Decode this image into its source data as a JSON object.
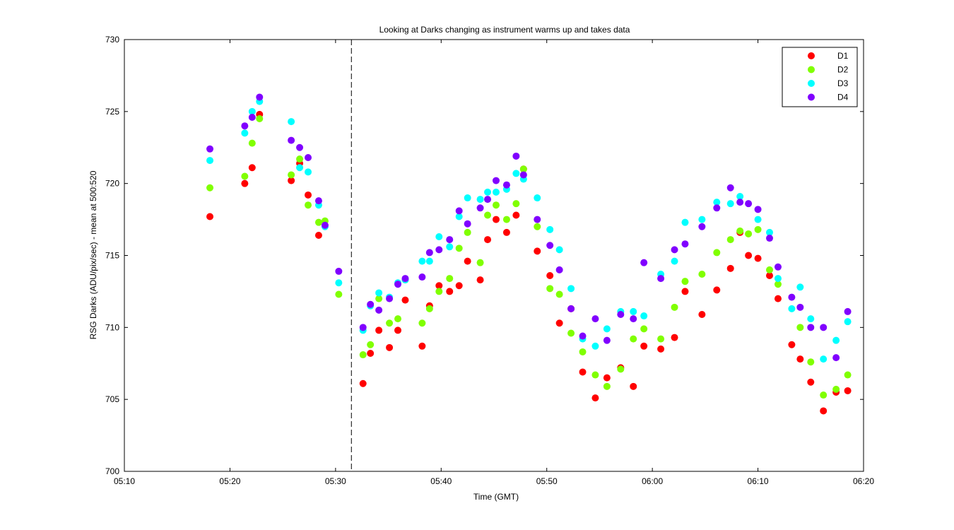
{
  "colors": {
    "background": "#ffffff",
    "D1": "#ff0000",
    "D2": "#80ff00",
    "D3": "#00ffff",
    "D4": "#8000ff"
  },
  "chart_data": {
    "type": "scatter",
    "title": "Looking at Darks changing as instrument warms up and takes data",
    "xlabel": "Time (GMT)",
    "ylabel": "RSG Darks (ADU/pix/sec) - mean at 500:520",
    "xlim": [
      "05:10",
      "06:20"
    ],
    "ylim": [
      700,
      730
    ],
    "x_tick_labels": [
      "05:10",
      "05:20",
      "05:30",
      "05:40",
      "05:50",
      "06:00",
      "06:10",
      "06:20"
    ],
    "y_tick_labels": [
      "700",
      "705",
      "710",
      "715",
      "720",
      "725",
      "730"
    ],
    "grid": false,
    "legend_position": "top-right",
    "vertical_reference_line": {
      "x": "05:31.5",
      "style": "dashed"
    },
    "series": [
      {
        "name": "D1",
        "points": [
          [
            "05:18.1",
            717.7
          ],
          [
            "05:21.4",
            720.0
          ],
          [
            "05:22.1",
            721.1
          ],
          [
            "05:22.8",
            724.8
          ],
          [
            "05:25.8",
            720.2
          ],
          [
            "05:26.6",
            721.4
          ],
          [
            "05:27.4",
            719.2
          ],
          [
            "05:28.4",
            716.4
          ],
          [
            "05:32.6",
            706.1
          ],
          [
            "05:33.3",
            708.2
          ],
          [
            "05:34.1",
            709.8
          ],
          [
            "05:35.1",
            708.6
          ],
          [
            "05:35.9",
            709.8
          ],
          [
            "05:36.6",
            711.9
          ],
          [
            "05:38.2",
            708.7
          ],
          [
            "05:38.9",
            711.5
          ],
          [
            "05:39.8",
            712.9
          ],
          [
            "05:40.8",
            712.5
          ],
          [
            "05:41.7",
            712.9
          ],
          [
            "05:42.5",
            714.6
          ],
          [
            "05:43.7",
            713.3
          ],
          [
            "05:44.4",
            716.1
          ],
          [
            "05:45.2",
            717.5
          ],
          [
            "05:46.2",
            716.6
          ],
          [
            "05:47.1",
            717.8
          ],
          [
            "05:47.8",
            721.0
          ],
          [
            "05:49.1",
            715.3
          ],
          [
            "05:50.3",
            713.6
          ],
          [
            "05:51.2",
            710.3
          ],
          [
            "05:52.3",
            711.3
          ],
          [
            "05:53.4",
            706.9
          ],
          [
            "05:54.6",
            705.1
          ],
          [
            "05:55.7",
            706.5
          ],
          [
            "05:57.0",
            707.2
          ],
          [
            "05:58.2",
            705.9
          ],
          [
            "05:59.2",
            708.7
          ],
          [
            "06:00.8",
            708.5
          ],
          [
            "06:02.1",
            709.3
          ],
          [
            "06:03.1",
            712.5
          ],
          [
            "06:04.7",
            710.9
          ],
          [
            "06:06.1",
            712.6
          ],
          [
            "06:07.4",
            714.1
          ],
          [
            "06:08.3",
            716.6
          ],
          [
            "06:09.1",
            715.0
          ],
          [
            "06:10.0",
            714.8
          ],
          [
            "06:11.1",
            713.6
          ],
          [
            "06:11.9",
            712.0
          ],
          [
            "06:13.2",
            708.8
          ],
          [
            "06:14.0",
            707.8
          ],
          [
            "06:15.0",
            706.2
          ],
          [
            "06:16.2",
            704.2
          ],
          [
            "06:17.4",
            705.5
          ],
          [
            "06:18.5",
            705.6
          ]
        ]
      },
      {
        "name": "D2",
        "points": [
          [
            "05:18.1",
            719.7
          ],
          [
            "05:21.4",
            720.5
          ],
          [
            "05:22.1",
            722.8
          ],
          [
            "05:22.8",
            724.5
          ],
          [
            "05:25.8",
            720.6
          ],
          [
            "05:26.6",
            721.7
          ],
          [
            "05:27.4",
            718.5
          ],
          [
            "05:28.4",
            717.3
          ],
          [
            "05:29.0",
            717.4
          ],
          [
            "05:30.3",
            712.3
          ],
          [
            "05:32.6",
            708.1
          ],
          [
            "05:33.3",
            708.8
          ],
          [
            "05:34.1",
            712.0
          ],
          [
            "05:35.1",
            710.3
          ],
          [
            "05:35.9",
            710.6
          ],
          [
            "05:36.6",
            713.3
          ],
          [
            "05:38.2",
            710.3
          ],
          [
            "05:38.9",
            711.3
          ],
          [
            "05:39.8",
            712.5
          ],
          [
            "05:40.8",
            713.4
          ],
          [
            "05:41.7",
            715.5
          ],
          [
            "05:42.5",
            716.6
          ],
          [
            "05:43.7",
            714.5
          ],
          [
            "05:44.4",
            717.8
          ],
          [
            "05:45.2",
            718.5
          ],
          [
            "05:46.2",
            717.5
          ],
          [
            "05:47.1",
            718.6
          ],
          [
            "05:47.8",
            721.0
          ],
          [
            "05:49.1",
            717.0
          ],
          [
            "05:50.3",
            712.7
          ],
          [
            "05:51.2",
            712.3
          ],
          [
            "05:52.3",
            709.6
          ],
          [
            "05:53.4",
            708.3
          ],
          [
            "05:54.6",
            706.7
          ],
          [
            "05:55.7",
            705.9
          ],
          [
            "05:57.0",
            707.1
          ],
          [
            "05:58.2",
            709.2
          ],
          [
            "05:59.2",
            709.9
          ],
          [
            "06:00.8",
            709.2
          ],
          [
            "06:02.1",
            711.4
          ],
          [
            "06:03.1",
            713.2
          ],
          [
            "06:04.7",
            713.7
          ],
          [
            "06:06.1",
            715.2
          ],
          [
            "06:07.4",
            716.1
          ],
          [
            "06:08.3",
            716.7
          ],
          [
            "06:09.1",
            716.5
          ],
          [
            "06:10.0",
            716.8
          ],
          [
            "06:11.1",
            714.0
          ],
          [
            "06:11.9",
            713.0
          ],
          [
            "06:14.0",
            710.0
          ],
          [
            "06:15.0",
            707.6
          ],
          [
            "06:16.2",
            705.3
          ],
          [
            "06:17.4",
            705.7
          ],
          [
            "06:18.5",
            706.7
          ]
        ]
      },
      {
        "name": "D3",
        "points": [
          [
            "05:18.1",
            721.6
          ],
          [
            "05:21.4",
            723.5
          ],
          [
            "05:22.1",
            725.0
          ],
          [
            "05:22.8",
            725.7
          ],
          [
            "05:25.8",
            724.3
          ],
          [
            "05:26.6",
            721.1
          ],
          [
            "05:27.4",
            720.8
          ],
          [
            "05:28.4",
            718.5
          ],
          [
            "05:29.0",
            717.0
          ],
          [
            "05:30.3",
            713.1
          ],
          [
            "05:32.6",
            709.8
          ],
          [
            "05:33.3",
            711.5
          ],
          [
            "05:34.1",
            712.4
          ],
          [
            "05:35.1",
            712.1
          ],
          [
            "05:35.9",
            713.1
          ],
          [
            "05:36.6",
            713.3
          ],
          [
            "05:38.2",
            714.6
          ],
          [
            "05:38.9",
            714.6
          ],
          [
            "05:39.8",
            716.3
          ],
          [
            "05:40.8",
            715.6
          ],
          [
            "05:41.7",
            717.7
          ],
          [
            "05:42.5",
            719.0
          ],
          [
            "05:43.7",
            718.9
          ],
          [
            "05:44.4",
            719.4
          ],
          [
            "05:45.2",
            719.4
          ],
          [
            "05:46.2",
            719.6
          ],
          [
            "05:47.1",
            720.7
          ],
          [
            "05:47.8",
            720.3
          ],
          [
            "05:49.1",
            719.0
          ],
          [
            "05:50.3",
            716.8
          ],
          [
            "05:51.2",
            715.4
          ],
          [
            "05:52.3",
            712.7
          ],
          [
            "05:53.4",
            709.2
          ],
          [
            "05:54.6",
            708.7
          ],
          [
            "05:55.7",
            709.9
          ],
          [
            "05:57.0",
            711.1
          ],
          [
            "05:58.2",
            711.1
          ],
          [
            "05:59.2",
            710.8
          ],
          [
            "06:00.8",
            713.7
          ],
          [
            "06:02.1",
            714.6
          ],
          [
            "06:03.1",
            717.3
          ],
          [
            "06:04.7",
            717.5
          ],
          [
            "06:06.1",
            718.7
          ],
          [
            "06:07.4",
            718.6
          ],
          [
            "06:08.3",
            719.1
          ],
          [
            "06:10.0",
            717.5
          ],
          [
            "06:11.1",
            716.6
          ],
          [
            "06:11.9",
            713.4
          ],
          [
            "06:13.2",
            711.3
          ],
          [
            "06:14.0",
            712.8
          ],
          [
            "06:15.0",
            710.6
          ],
          [
            "06:16.2",
            707.8
          ],
          [
            "06:17.4",
            709.1
          ],
          [
            "06:18.5",
            710.4
          ]
        ]
      },
      {
        "name": "D4",
        "points": [
          [
            "05:18.1",
            722.4
          ],
          [
            "05:21.4",
            724.0
          ],
          [
            "05:22.1",
            724.6
          ],
          [
            "05:22.8",
            726.0
          ],
          [
            "05:25.8",
            723.0
          ],
          [
            "05:26.6",
            722.5
          ],
          [
            "05:27.4",
            721.8
          ],
          [
            "05:28.4",
            718.8
          ],
          [
            "05:29.0",
            717.1
          ],
          [
            "05:30.3",
            713.9
          ],
          [
            "05:32.6",
            710.0
          ],
          [
            "05:33.3",
            711.6
          ],
          [
            "05:34.1",
            711.2
          ],
          [
            "05:35.1",
            712.0
          ],
          [
            "05:35.9",
            713.0
          ],
          [
            "05:36.6",
            713.4
          ],
          [
            "05:38.2",
            713.5
          ],
          [
            "05:38.9",
            715.2
          ],
          [
            "05:39.8",
            715.4
          ],
          [
            "05:40.8",
            716.1
          ],
          [
            "05:41.7",
            718.1
          ],
          [
            "05:42.5",
            717.2
          ],
          [
            "05:43.7",
            718.3
          ],
          [
            "05:44.4",
            718.9
          ],
          [
            "05:45.2",
            720.2
          ],
          [
            "05:46.2",
            719.9
          ],
          [
            "05:47.1",
            721.9
          ],
          [
            "05:47.8",
            720.6
          ],
          [
            "05:49.1",
            717.5
          ],
          [
            "05:50.3",
            715.7
          ],
          [
            "05:51.2",
            714.0
          ],
          [
            "05:52.3",
            711.3
          ],
          [
            "05:53.4",
            709.4
          ],
          [
            "05:54.6",
            710.6
          ],
          [
            "05:55.7",
            709.1
          ],
          [
            "05:57.0",
            710.9
          ],
          [
            "05:58.2",
            710.6
          ],
          [
            "05:59.2",
            714.5
          ],
          [
            "06:00.8",
            713.4
          ],
          [
            "06:02.1",
            715.4
          ],
          [
            "06:03.1",
            715.8
          ],
          [
            "06:04.7",
            717.0
          ],
          [
            "06:06.1",
            718.3
          ],
          [
            "06:07.4",
            719.7
          ],
          [
            "06:08.3",
            718.7
          ],
          [
            "06:09.1",
            718.6
          ],
          [
            "06:10.0",
            718.2
          ],
          [
            "06:11.1",
            716.2
          ],
          [
            "06:11.9",
            714.2
          ],
          [
            "06:13.2",
            712.1
          ],
          [
            "06:14.0",
            711.4
          ],
          [
            "06:15.0",
            710.0
          ],
          [
            "06:16.2",
            710.0
          ],
          [
            "06:17.4",
            707.9
          ],
          [
            "06:18.5",
            711.1
          ]
        ]
      }
    ]
  }
}
